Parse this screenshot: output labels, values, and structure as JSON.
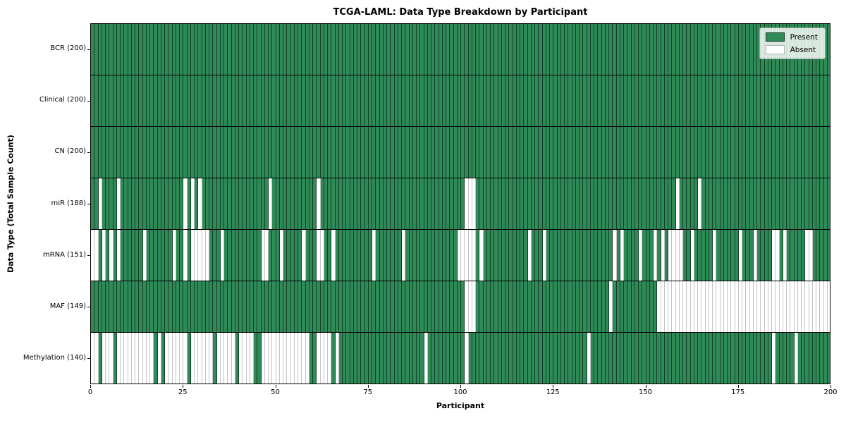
{
  "title": "TCGA-LAML: Data Type Breakdown by Participant",
  "xlabel": "Participant",
  "ylabel": "Data Type (Total Sample Count)",
  "legend": {
    "present_label": "Present",
    "absent_label": "Absent"
  },
  "colors": {
    "present": "#2e8b57",
    "absent": "#ffffff"
  },
  "chart_data": {
    "type": "heatmap",
    "x_axis": {
      "label": "Participant",
      "min": 0,
      "max": 200,
      "ticks": [
        0,
        25,
        50,
        75,
        100,
        125,
        150,
        175,
        200
      ]
    },
    "n_participants": 200,
    "cell_states": [
      "Present",
      "Absent"
    ],
    "rows": [
      {
        "label": "BCR (200)",
        "data_type": "BCR",
        "total_sample_count": 200,
        "absent_participants": []
      },
      {
        "label": "Clinical (200)",
        "data_type": "Clinical",
        "total_sample_count": 200,
        "absent_participants": []
      },
      {
        "label": "CN (200)",
        "data_type": "CN",
        "total_sample_count": 200,
        "absent_participants": []
      },
      {
        "label": "miR (188)",
        "data_type": "miR",
        "total_sample_count": 188,
        "absent_participants": [
          2,
          7,
          25,
          27,
          29,
          48,
          61,
          101,
          102,
          103,
          158,
          164
        ]
      },
      {
        "label": "mRNA (151)",
        "data_type": "mRNA",
        "total_sample_count": 151,
        "absent_participants": [
          0,
          1,
          3,
          5,
          7,
          14,
          22,
          25,
          27,
          28,
          29,
          30,
          31,
          35,
          46,
          47,
          51,
          57,
          61,
          62,
          65,
          76,
          84,
          99,
          100,
          101,
          102,
          103,
          105,
          118,
          122,
          141,
          143,
          148,
          152,
          154,
          156,
          157,
          158,
          159,
          162,
          168,
          175,
          179,
          184,
          185,
          187,
          193,
          194
        ]
      },
      {
        "label": "MAF (149)",
        "data_type": "MAF",
        "total_sample_count": 149,
        "absent_participants": [
          101,
          102,
          103,
          140,
          153,
          154,
          155,
          156,
          157,
          158,
          159,
          160,
          161,
          162,
          163,
          164,
          165,
          166,
          167,
          168,
          169,
          170,
          171,
          172,
          173,
          174,
          175,
          176,
          177,
          178,
          179,
          180,
          181,
          182,
          183,
          184,
          185,
          186,
          187,
          188,
          189,
          190,
          191,
          192,
          193,
          194,
          195,
          196,
          197,
          198,
          199
        ]
      },
      {
        "label": "Methylation (140)",
        "data_type": "Methylation",
        "total_sample_count": 140,
        "absent_participants": [
          0,
          1,
          3,
          4,
          5,
          7,
          8,
          9,
          10,
          11,
          12,
          13,
          14,
          15,
          16,
          18,
          20,
          21,
          22,
          23,
          24,
          25,
          27,
          28,
          29,
          30,
          31,
          32,
          34,
          35,
          36,
          37,
          38,
          40,
          41,
          42,
          43,
          46,
          47,
          48,
          49,
          50,
          51,
          52,
          53,
          54,
          55,
          56,
          57,
          58,
          61,
          62,
          63,
          64,
          66,
          90,
          101,
          134,
          184,
          190
        ]
      }
    ]
  }
}
